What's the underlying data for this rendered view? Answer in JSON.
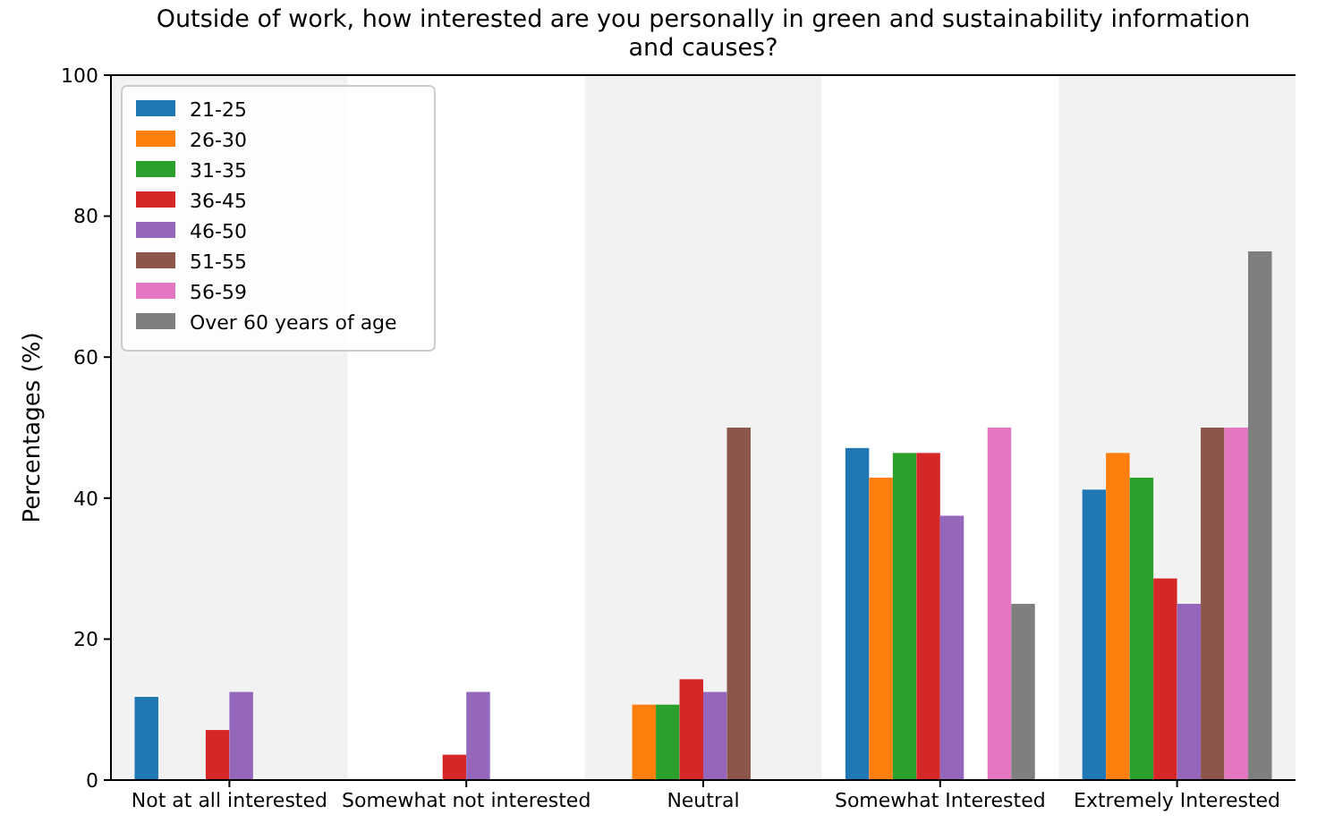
{
  "chart_data": {
    "type": "bar",
    "title": "Outside of work, how interested are you personally in green and sustainability information\nand causes?",
    "ylabel": "Percentages (%)",
    "categories": [
      "Not at all interested",
      "Somewhat not interested",
      "Neutral",
      "Somewhat Interested",
      "Extremely Interested"
    ],
    "series": [
      {
        "name": "21-25",
        "color": "#1f77b4",
        "values": [
          11.8,
          0,
          0,
          47.1,
          41.2
        ]
      },
      {
        "name": "26-30",
        "color": "#ff7f0e",
        "values": [
          0,
          0,
          10.7,
          42.9,
          46.4
        ]
      },
      {
        "name": "31-35",
        "color": "#2ca02c",
        "values": [
          0,
          0,
          10.7,
          46.4,
          42.9
        ]
      },
      {
        "name": "36-45",
        "color": "#d62728",
        "values": [
          7.1,
          3.6,
          14.3,
          46.4,
          28.6
        ]
      },
      {
        "name": "46-50",
        "color": "#9467bd",
        "values": [
          12.5,
          12.5,
          12.5,
          37.5,
          25
        ]
      },
      {
        "name": "51-55",
        "color": "#8c564b",
        "values": [
          0,
          0,
          50,
          0,
          50
        ]
      },
      {
        "name": "56-59",
        "color": "#e377c2",
        "values": [
          0,
          0,
          0,
          50,
          50
        ]
      },
      {
        "name": "Over 60 years of age",
        "color": "#7f7f7f",
        "values": [
          0,
          0,
          0,
          25,
          75
        ]
      }
    ],
    "ylim": [
      0,
      100
    ],
    "yticks": [
      0,
      20,
      40,
      60,
      80,
      100
    ],
    "legend": "top left",
    "grid": false
  }
}
